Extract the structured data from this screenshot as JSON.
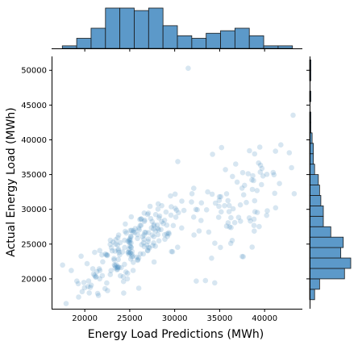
{
  "chart_data": {
    "type": "scatter",
    "xlabel": "Energy Load Predictions (MWh)",
    "ylabel": "Actual Energy Load (MWh)",
    "xlim": [
      16400,
      44200
    ],
    "ylim": [
      15700,
      52000
    ],
    "xticks": [
      20000,
      25000,
      30000,
      35000,
      40000
    ],
    "yticks": [
      20000,
      25000,
      30000,
      35000,
      40000,
      45000,
      50000
    ],
    "xtick_labels": [
      "20000",
      "25000",
      "30000",
      "35000",
      "40000"
    ],
    "ytick_labels": [
      "20000",
      "25000",
      "30000",
      "35000",
      "40000",
      "45000",
      "50000"
    ],
    "marginal_x_histogram": {
      "bin_edges": [
        17500,
        19100,
        20700,
        22300,
        23900,
        25500,
        27100,
        28700,
        30300,
        31900,
        33500,
        35100,
        36700,
        38300,
        39900,
        41500,
        43100,
        44700
      ],
      "counts": [
        1,
        4,
        8,
        16,
        16,
        15,
        16,
        9,
        5,
        4,
        6,
        7,
        8,
        5,
        1,
        1,
        0
      ]
    },
    "marginal_y_histogram": {
      "bin_edges": [
        17000,
        18500,
        20000,
        21500,
        23000,
        24500,
        26000,
        27500,
        29000,
        30500,
        32000,
        33500,
        35000,
        36500,
        38000,
        39500,
        41000,
        42500,
        44000,
        45500,
        47000,
        48500,
        50000,
        51500
      ],
      "counts": [
        4,
        8,
        28,
        33,
        25,
        27,
        17,
        11,
        11,
        9,
        8,
        7,
        4,
        3,
        3,
        2,
        1,
        1,
        0,
        1,
        0,
        1,
        1
      ]
    },
    "point_color": "#4a8cc0",
    "hist_color": "#3f87c0",
    "grid": false
  }
}
